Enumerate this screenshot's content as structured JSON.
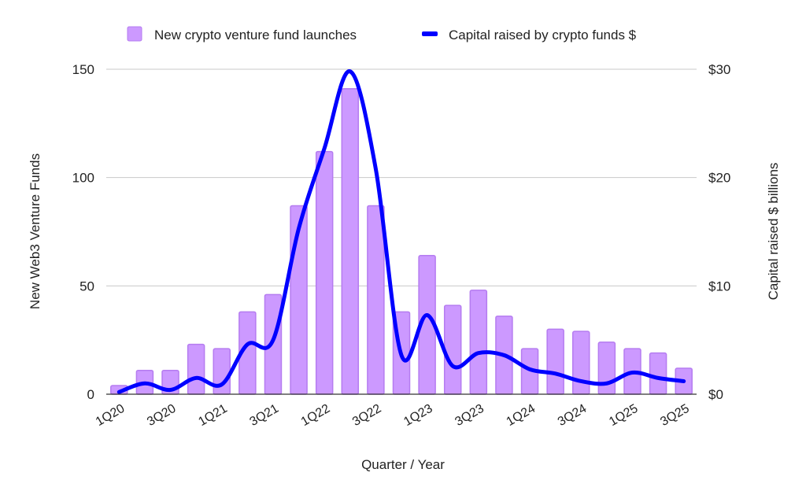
{
  "chart_data": {
    "type": "bar+line",
    "title": "",
    "xlabel": "Quarter / Year",
    "ylabel_left": "New Web3 Venture Funds",
    "ylabel_right": "Capital raised $ billions",
    "categories": [
      "1Q20",
      "2Q20",
      "3Q20",
      "4Q20",
      "1Q21",
      "2Q21",
      "3Q21",
      "4Q21",
      "1Q22",
      "2Q22",
      "3Q22",
      "4Q22",
      "1Q23",
      "2Q23",
      "3Q23",
      "4Q23",
      "1Q24",
      "2Q24",
      "3Q24",
      "4Q24",
      "1Q25",
      "2Q25",
      "3Q25"
    ],
    "x_tick_labels": [
      "1Q20",
      "3Q20",
      "1Q21",
      "3Q21",
      "1Q22",
      "3Q22",
      "1Q23",
      "3Q23",
      "1Q24",
      "3Q24",
      "1Q25",
      "3Q25"
    ],
    "ylim_left": [
      0,
      150
    ],
    "yticks_left": [
      "0",
      "50",
      "100",
      "150"
    ],
    "ylim_right": [
      0,
      30
    ],
    "yticks_right": [
      "$0",
      "$10",
      "$20",
      "$30"
    ],
    "grid": true,
    "legend_position": "top",
    "series": [
      {
        "name": "New crypto venture fund launches",
        "type": "bar",
        "axis": "left",
        "color": "#cc99ff",
        "values": [
          4,
          11,
          11,
          23,
          21,
          38,
          46,
          87,
          112,
          141,
          87,
          38,
          64,
          41,
          48,
          36,
          21,
          30,
          29,
          24,
          21,
          19,
          12
        ]
      },
      {
        "name": "Capital raised by crypto funds $",
        "type": "line",
        "axis": "right",
        "color": "#0000ff",
        "values": [
          0.2,
          1.0,
          0.4,
          1.5,
          0.9,
          4.6,
          5.0,
          15.3,
          22.7,
          29.8,
          20.8,
          3.6,
          7.3,
          2.6,
          3.8,
          3.6,
          2.3,
          1.9,
          1.2,
          1.0,
          2.0,
          1.5,
          1.2
        ]
      }
    ]
  }
}
